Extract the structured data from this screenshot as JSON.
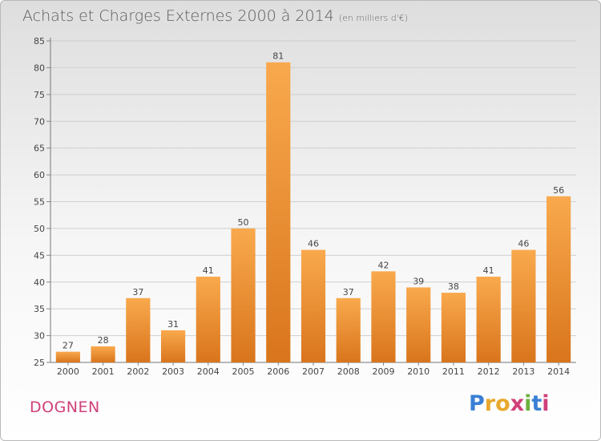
{
  "header": {
    "title": "Achats et Charges Externes 2000 à 2014",
    "subtitle": "(en milliers d'€)"
  },
  "commune": "DOGNEN",
  "logo": {
    "text": "Proxiti",
    "letter_colors": [
      "#3a7fd4",
      "#e8a82c",
      "#e8a82c",
      "#d0407a",
      "#6cb33f",
      "#3a7fd4",
      "#d0407a"
    ]
  },
  "colors": {
    "bar_top": "#f9a94d",
    "bar_bottom": "#d9751c",
    "grid": "#cfcfcf"
  },
  "chart_data": {
    "type": "bar",
    "categories": [
      "2000",
      "2001",
      "2002",
      "2003",
      "2004",
      "2005",
      "2006",
      "2007",
      "2008",
      "2009",
      "2010",
      "2011",
      "2012",
      "2013",
      "2014"
    ],
    "values": [
      27,
      28,
      37,
      31,
      41,
      50,
      81,
      46,
      37,
      42,
      39,
      38,
      41,
      46,
      56
    ],
    "ylim": [
      25,
      85
    ],
    "yticks": [
      25,
      30,
      35,
      40,
      45,
      50,
      55,
      60,
      65,
      70,
      75,
      80,
      85
    ],
    "grid": true,
    "legend": false
  }
}
